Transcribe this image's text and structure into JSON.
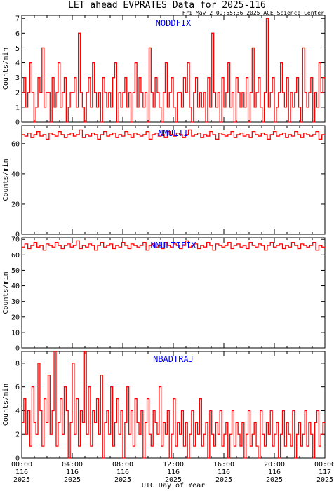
{
  "header": {
    "title": "LET ahead EVPRATES Data for 2025-116",
    "timestamp": "Fri May  2 09:55:36 2025 ACE Science Center"
  },
  "chart_data": [
    {
      "type": "line",
      "title": "NODDFIX",
      "ylabel": "Counts/min",
      "ylim": [
        0,
        7.2
      ],
      "yticks": [
        0,
        1,
        2,
        3,
        4,
        5,
        6,
        7
      ],
      "color": "#ff0000",
      "title_color": "#0000ff",
      "series": [
        {
          "values": [
            2,
            3,
            1,
            2,
            4,
            2,
            0,
            1,
            3,
            2,
            5,
            1,
            2,
            2,
            0,
            3,
            1,
            2,
            4,
            1,
            2,
            3,
            0,
            1,
            2,
            2,
            3,
            1,
            6,
            2,
            1,
            0,
            2,
            3,
            1,
            4,
            2,
            1,
            2,
            0,
            3,
            2,
            1,
            2,
            1,
            3,
            4,
            0,
            2,
            1,
            2,
            3,
            1,
            2,
            0,
            2,
            4,
            1,
            3,
            2,
            1,
            2,
            0,
            5,
            2,
            1,
            3,
            2,
            1,
            0,
            2,
            4,
            1,
            2,
            3,
            1,
            0,
            2,
            2,
            1,
            3,
            2,
            4,
            1,
            0,
            2,
            3,
            1,
            2,
            1,
            2,
            0,
            3,
            1,
            6,
            2,
            1,
            2,
            0,
            3,
            1,
            2,
            4,
            1,
            2,
            0,
            3,
            2,
            1,
            2,
            1,
            3,
            0,
            2,
            5,
            1,
            2,
            3,
            1,
            0,
            2,
            7,
            1,
            2,
            3,
            0,
            1,
            2,
            4,
            2,
            1,
            3,
            0,
            2,
            1,
            2,
            3,
            1,
            0,
            5,
            2,
            1,
            2,
            3,
            0,
            2,
            1,
            4,
            2,
            3
          ]
        }
      ]
    },
    {
      "type": "line",
      "title": "NMULTI",
      "ylabel": "Counts/min",
      "ylim": [
        0,
        72
      ],
      "yticks": [
        0,
        20,
        40,
        60
      ],
      "color": "#ff0000",
      "title_color": "#0000ff",
      "series": [
        {
          "values": [
            66,
            65,
            67,
            64,
            66,
            68,
            65,
            66,
            63,
            67,
            66,
            65,
            68,
            66,
            64,
            66,
            67,
            65,
            66,
            69,
            64,
            66,
            65,
            67,
            66,
            63,
            66,
            68,
            65,
            66,
            67,
            64,
            66,
            65,
            68,
            66,
            64,
            67,
            66,
            65,
            66,
            68,
            63,
            66,
            67,
            65,
            66,
            64,
            68,
            66,
            65,
            67,
            66,
            64,
            66,
            69,
            65,
            66,
            67,
            64,
            66,
            65,
            68,
            66,
            63,
            67,
            66,
            65,
            66,
            68,
            64,
            66,
            67,
            65,
            66,
            64,
            68,
            66,
            65,
            67,
            66,
            63,
            66,
            68,
            65,
            66,
            67,
            64,
            66,
            65,
            68,
            66,
            64,
            67,
            66,
            65,
            66,
            68,
            63,
            66
          ]
        }
      ]
    },
    {
      "type": "line",
      "title": "NMULTIFIX",
      "ylabel": "Counts/min",
      "ylim": [
        0,
        71
      ],
      "yticks": [
        0,
        10,
        20,
        30,
        40,
        50,
        60,
        70
      ],
      "color": "#ff0000",
      "title_color": "#0000ff",
      "series": [
        {
          "values": [
            65,
            67,
            64,
            66,
            68,
            65,
            66,
            63,
            67,
            66,
            65,
            68,
            66,
            64,
            66,
            67,
            65,
            66,
            69,
            64,
            66,
            65,
            67,
            66,
            63,
            66,
            68,
            65,
            66,
            67,
            64,
            66,
            65,
            68,
            66,
            64,
            67,
            66,
            65,
            66,
            68,
            63,
            66,
            67,
            65,
            66,
            64,
            68,
            66,
            65,
            67,
            66,
            64,
            66,
            69,
            65,
            66,
            67,
            64,
            66,
            65,
            68,
            66,
            63,
            67,
            66,
            65,
            66,
            68,
            64,
            66,
            67,
            65,
            66,
            64,
            68,
            66,
            65,
            67,
            66,
            63,
            66,
            68,
            65,
            66,
            67,
            64,
            66,
            65,
            68,
            66,
            64,
            67,
            66,
            65,
            66,
            68,
            63,
            66,
            65
          ]
        }
      ]
    },
    {
      "type": "line",
      "title": "NBADTRAJ",
      "ylabel": "Counts/min",
      "xlabel": "UTC Day of Year",
      "ylim": [
        0,
        9
      ],
      "yticks": [
        0,
        2,
        4,
        6,
        8
      ],
      "color": "#ff0000",
      "title_color": "#0000ff",
      "x_ticks": [
        {
          "time": "00:00",
          "doy": "116",
          "year": "2025"
        },
        {
          "time": "04:00",
          "doy": "116",
          "year": "2025"
        },
        {
          "time": "08:00",
          "doy": "116",
          "year": "2025"
        },
        {
          "time": "12:00",
          "doy": "116",
          "year": "2025"
        },
        {
          "time": "16:00",
          "doy": "116",
          "year": "2025"
        },
        {
          "time": "20:00",
          "doy": "116",
          "year": "2025"
        },
        {
          "time": "00:00",
          "doy": "117",
          "year": "2025"
        }
      ],
      "series": [
        {
          "values": [
            3,
            5,
            2,
            4,
            1,
            6,
            3,
            2,
            8,
            4,
            1,
            5,
            3,
            7,
            2,
            4,
            9,
            1,
            3,
            5,
            2,
            6,
            4,
            0,
            3,
            8,
            2,
            5,
            1,
            4,
            3,
            9,
            2,
            6,
            1,
            4,
            3,
            5,
            2,
            7,
            0,
            3,
            4,
            2,
            6,
            1,
            3,
            5,
            2,
            4,
            0,
            3,
            6,
            2,
            4,
            1,
            5,
            3,
            2,
            4,
            0,
            3,
            5,
            2,
            1,
            4,
            3,
            2,
            6,
            1,
            3,
            2,
            4,
            0,
            2,
            5,
            1,
            3,
            2,
            4,
            1,
            3,
            0,
            2,
            4,
            1,
            3,
            2,
            5,
            1,
            2,
            3,
            0,
            4,
            2,
            1,
            3,
            2,
            4,
            1,
            2,
            3,
            0,
            2,
            4,
            1,
            3,
            2,
            1,
            3,
            0,
            2,
            4,
            1,
            2,
            3,
            1,
            0,
            4,
            2,
            1,
            3,
            2,
            4,
            1,
            2,
            3,
            0,
            2,
            4,
            1,
            3,
            2,
            1,
            4,
            0,
            2,
            3,
            1,
            2,
            4,
            1,
            3,
            2,
            0,
            3,
            4,
            1,
            2,
            3
          ]
        }
      ]
    }
  ]
}
